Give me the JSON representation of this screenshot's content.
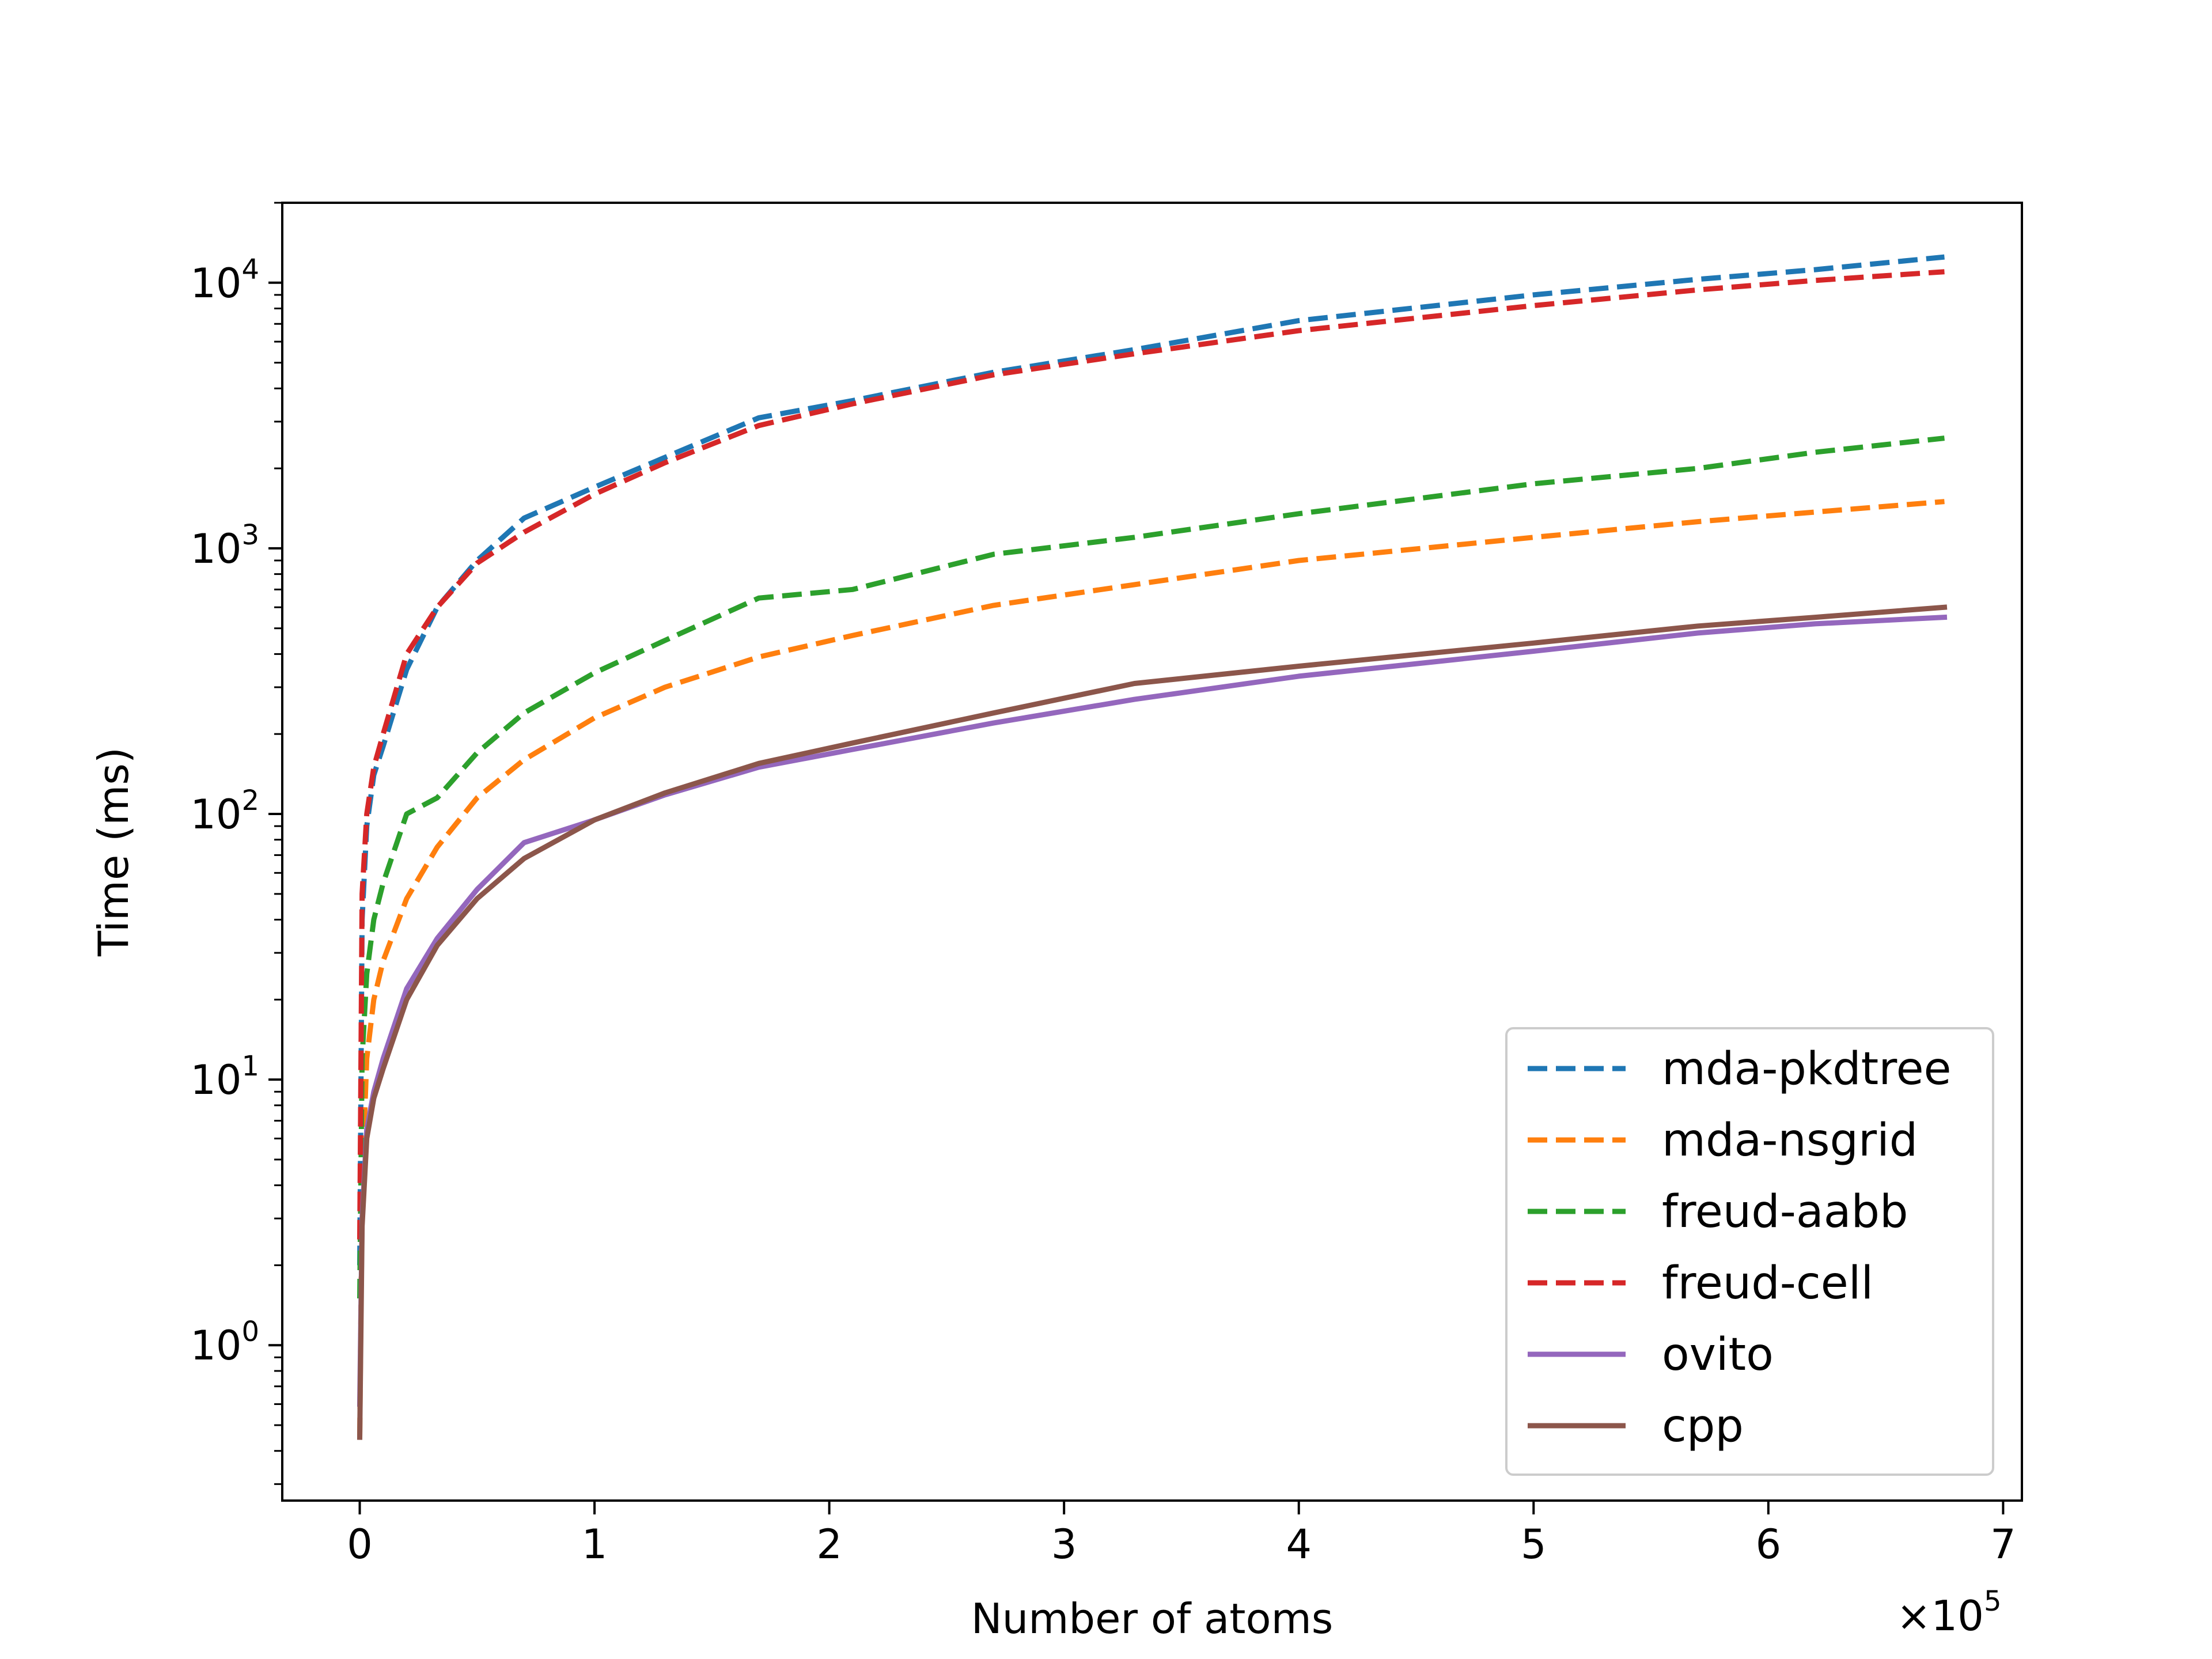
{
  "chart_data": {
    "type": "line",
    "title": "",
    "xlabel": "Number of atoms",
    "ylabel": "Time (ms)",
    "x_offset_label": {
      "base": "×10",
      "exponent": "5"
    },
    "xscale": "linear",
    "yscale": "log",
    "xlim": [
      -33000,
      708000
    ],
    "ylim": [
      0.26,
      20000
    ],
    "grid": false,
    "legend_position": "lower-right",
    "x_ticks": [
      {
        "value": 0,
        "label": "0"
      },
      {
        "value": 100000,
        "label": "1"
      },
      {
        "value": 200000,
        "label": "2"
      },
      {
        "value": 300000,
        "label": "3"
      },
      {
        "value": 400000,
        "label": "4"
      },
      {
        "value": 500000,
        "label": "5"
      },
      {
        "value": 600000,
        "label": "6"
      },
      {
        "value": 700000,
        "label": "7"
      }
    ],
    "y_ticks": [
      {
        "value": 1,
        "base": "10",
        "exponent": "0"
      },
      {
        "value": 10,
        "base": "10",
        "exponent": "1"
      },
      {
        "value": 100,
        "base": "10",
        "exponent": "2"
      },
      {
        "value": 1000,
        "base": "10",
        "exponent": "3"
      },
      {
        "value": 10000,
        "base": "10",
        "exponent": "4"
      }
    ],
    "series": [
      {
        "name": "mda-pkdtree",
        "color": "#1f77b4",
        "dashed": true,
        "x": [
          0,
          1000,
          3000,
          6000,
          10000,
          20000,
          33000,
          50000,
          70000,
          100000,
          130000,
          170000,
          210000,
          270000,
          330000,
          400000,
          500000,
          570000,
          620000,
          675000
        ],
        "y": [
          2,
          40,
          90,
          140,
          180,
          350,
          600,
          900,
          1300,
          1700,
          2200,
          3100,
          3600,
          4600,
          5600,
          7200,
          9000,
          10300,
          11200,
          12500
        ]
      },
      {
        "name": "mda-nsgrid",
        "color": "#ff7f0e",
        "dashed": true,
        "x": [
          0,
          1000,
          3000,
          6000,
          10000,
          20000,
          33000,
          50000,
          70000,
          100000,
          130000,
          170000,
          210000,
          270000,
          330000,
          400000,
          500000,
          570000,
          620000,
          675000
        ],
        "y": [
          0.45,
          4,
          12,
          20,
          28,
          48,
          75,
          115,
          160,
          230,
          300,
          390,
          470,
          610,
          730,
          900,
          1100,
          1260,
          1370,
          1500
        ]
      },
      {
        "name": "freud-aabb",
        "color": "#2ca02c",
        "dashed": true,
        "x": [
          0,
          1000,
          3000,
          6000,
          10000,
          20000,
          33000,
          50000,
          70000,
          100000,
          130000,
          170000,
          210000,
          270000,
          330000,
          400000,
          500000,
          570000,
          620000,
          675000
        ],
        "y": [
          1.5,
          12,
          25,
          40,
          55,
          100,
          115,
          170,
          240,
          340,
          450,
          650,
          700,
          950,
          1100,
          1350,
          1750,
          2000,
          2300,
          2600
        ]
      },
      {
        "name": "freud-cell",
        "color": "#d62728",
        "dashed": true,
        "x": [
          0,
          1000,
          3000,
          6000,
          10000,
          20000,
          33000,
          50000,
          70000,
          100000,
          130000,
          170000,
          210000,
          270000,
          330000,
          400000,
          500000,
          570000,
          620000,
          675000
        ],
        "y": [
          2.5,
          50,
          100,
          150,
          200,
          400,
          600,
          880,
          1150,
          1600,
          2100,
          2900,
          3500,
          4500,
          5400,
          6600,
          8200,
          9400,
          10200,
          11000
        ]
      },
      {
        "name": "ovito",
        "color": "#9467bd",
        "dashed": false,
        "x": [
          0,
          1000,
          3000,
          6000,
          10000,
          20000,
          33000,
          50000,
          70000,
          100000,
          130000,
          170000,
          210000,
          270000,
          330000,
          400000,
          500000,
          570000,
          620000,
          675000
        ],
        "y": [
          0.6,
          3,
          6.5,
          9,
          12,
          22,
          34,
          52,
          78,
          95,
          118,
          150,
          175,
          220,
          270,
          330,
          410,
          480,
          520,
          550
        ]
      },
      {
        "name": "cpp",
        "color": "#8c564b",
        "dashed": false,
        "x": [
          0,
          1000,
          3000,
          6000,
          10000,
          20000,
          33000,
          50000,
          70000,
          100000,
          130000,
          170000,
          210000,
          270000,
          330000,
          400000,
          500000,
          570000,
          620000,
          675000
        ],
        "y": [
          0.45,
          2.8,
          6,
          8.5,
          11,
          20,
          32,
          48,
          68,
          95,
          120,
          155,
          185,
          240,
          310,
          360,
          440,
          510,
          550,
          600
        ]
      }
    ]
  }
}
